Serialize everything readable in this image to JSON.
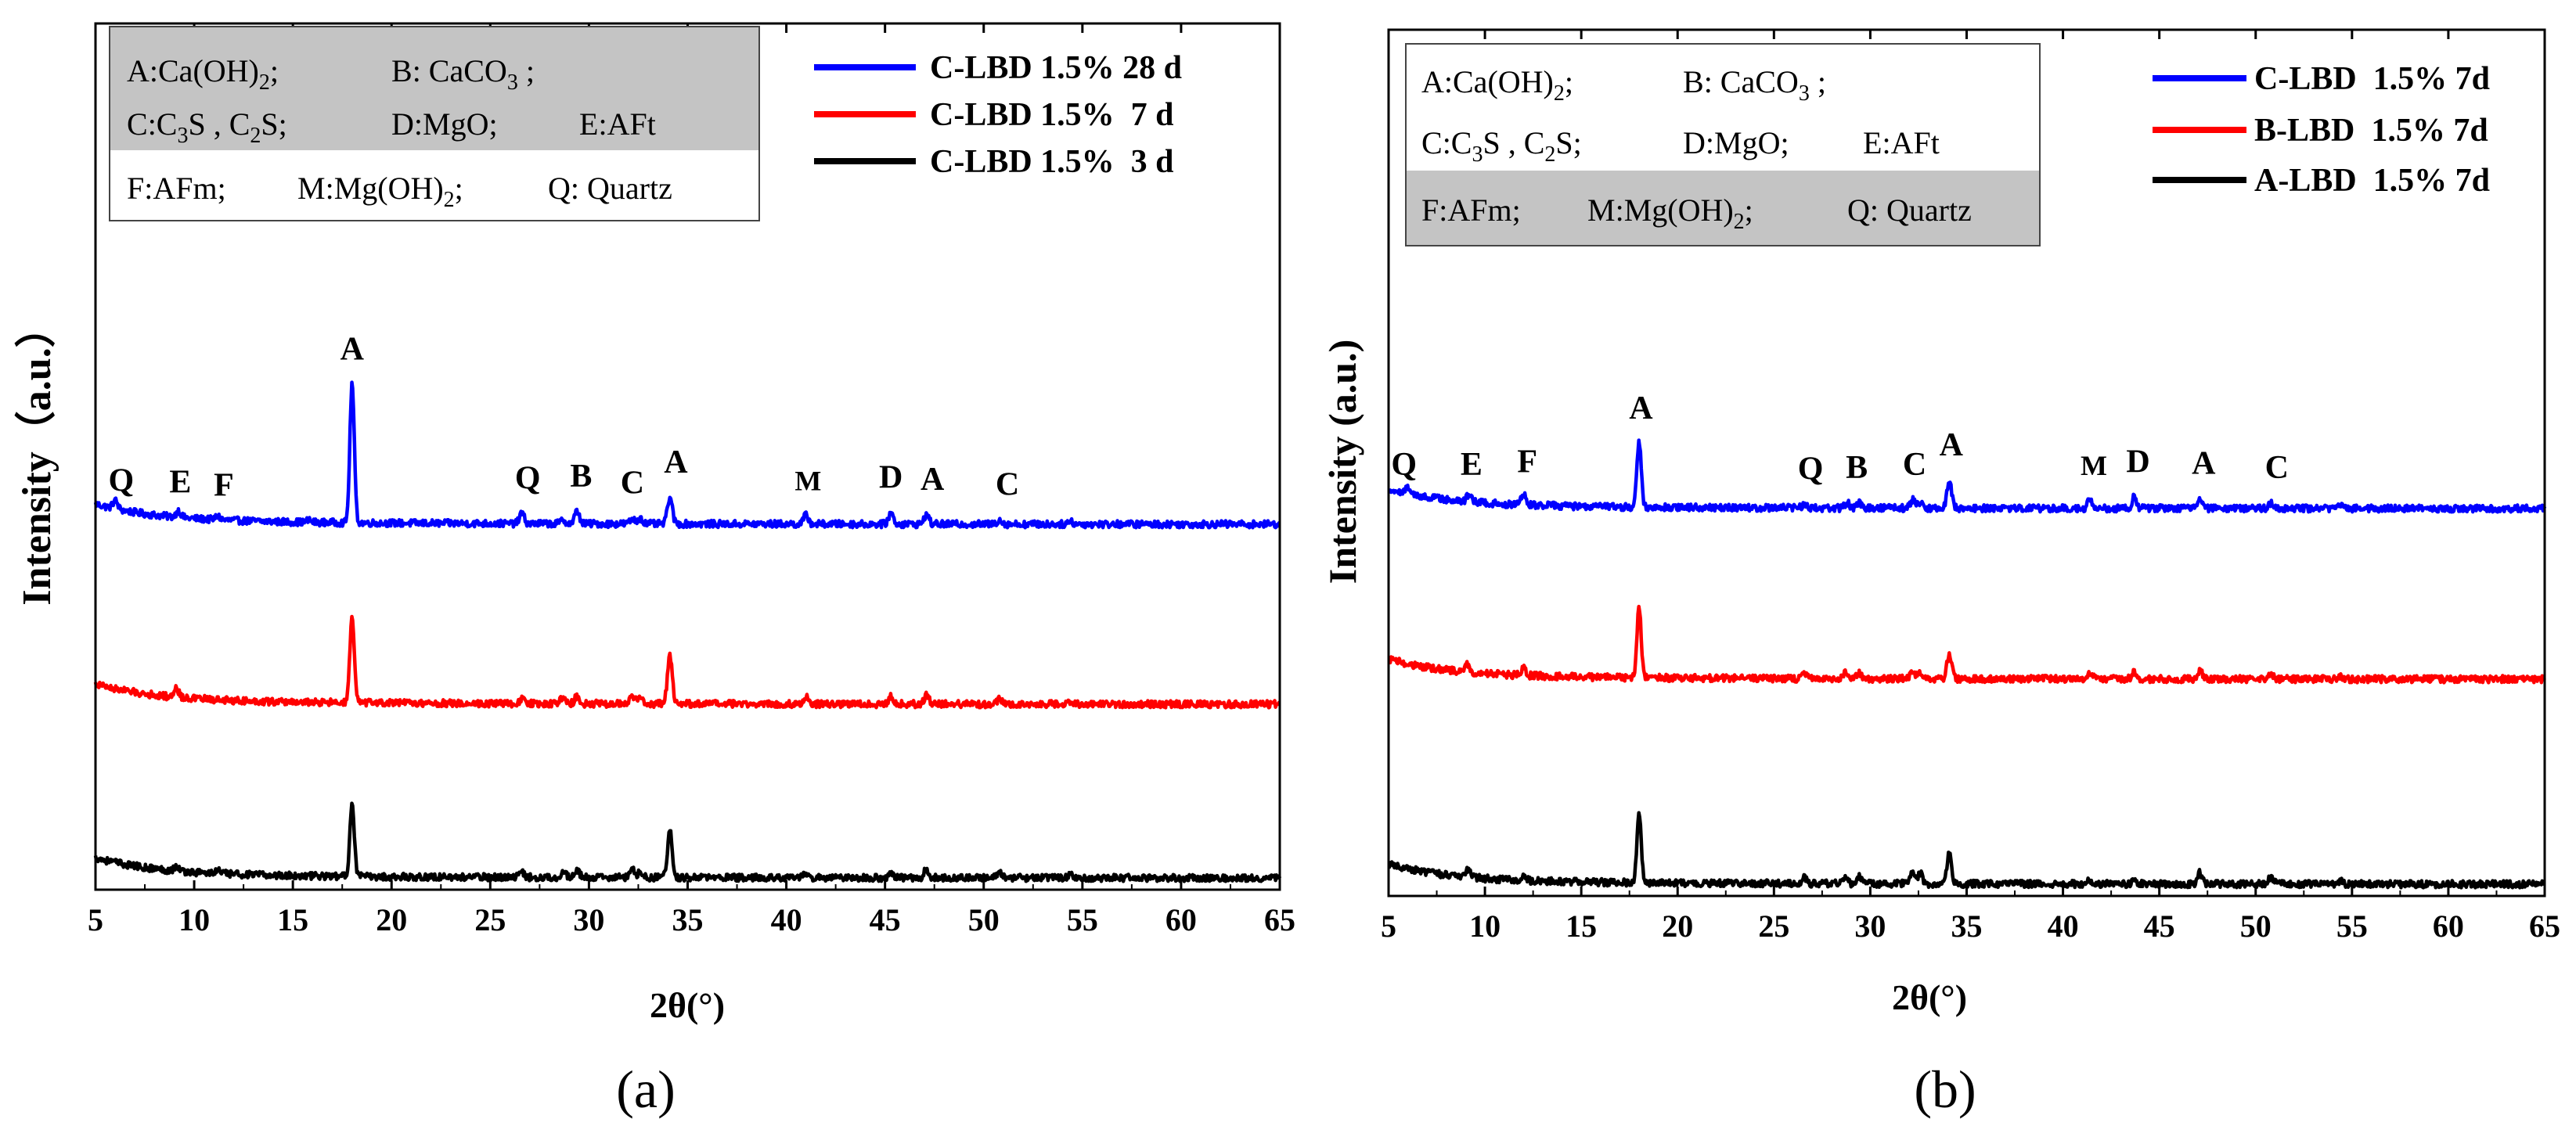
{
  "chart_data": [
    {
      "type": "line",
      "panel_label": "(a)",
      "xlabel": "2θ(°)",
      "ylabel": "Intensity（a.u.）",
      "xlim": [
        5,
        65
      ],
      "xticks": [
        "5",
        "10",
        "15",
        "20",
        "25",
        "30",
        "35",
        "40",
        "45",
        "50",
        "55",
        "60",
        "65"
      ],
      "legend": [
        "C-LBD 1.5% 28 d",
        "C-LBD 1.5%  7 d",
        "C-LBD 1.5%  3 d"
      ],
      "phase_key": [
        {
          "code": "A",
          "text": "Ca(OH)2"
        },
        {
          "code": "B",
          "text": "CaCO3"
        },
        {
          "code": "C",
          "text": "C3S , C2S"
        },
        {
          "code": "D",
          "text": "MgO"
        },
        {
          "code": "E",
          "text": "AFt"
        },
        {
          "code": "F",
          "text": "AFm"
        },
        {
          "code": "M",
          "text": "Mg(OH)2"
        },
        {
          "code": "Q",
          "text": "Quartz"
        }
      ],
      "series": [
        {
          "name": "C-LBD 1.5% 28 d",
          "color": "#0000ff",
          "baseline": 2.0,
          "peaks": [
            [
              6.0,
              0.28
            ],
            [
              9.2,
              0.22
            ],
            [
              11.2,
              0.12
            ],
            [
              15.8,
              0.06
            ],
            [
              18.0,
              4.7
            ],
            [
              26.6,
              0.35
            ],
            [
              28.7,
              0.12
            ],
            [
              29.4,
              0.42
            ],
            [
              32.2,
              0.15
            ],
            [
              32.6,
              0.2
            ],
            [
              34.1,
              0.9
            ],
            [
              41.0,
              0.3
            ],
            [
              45.3,
              0.38
            ],
            [
              47.1,
              0.32
            ],
            [
              50.8,
              0.15
            ],
            [
              54.4,
              0.1
            ]
          ]
        },
        {
          "name": "C-LBD 1.5%  7 d",
          "color": "#ff0000",
          "baseline": 1.0,
          "peaks": [
            [
              9.1,
              0.3
            ],
            [
              18.0,
              2.9
            ],
            [
              26.6,
              0.15
            ],
            [
              28.7,
              0.25
            ],
            [
              29.4,
              0.25
            ],
            [
              32.2,
              0.25
            ],
            [
              32.6,
              0.2
            ],
            [
              34.1,
              1.6
            ],
            [
              41.0,
              0.25
            ],
            [
              45.3,
              0.25
            ],
            [
              47.1,
              0.3
            ],
            [
              50.8,
              0.15
            ],
            [
              54.4,
              0.1
            ]
          ]
        },
        {
          "name": "C-LBD 1.5%  3 d",
          "color": "#000000",
          "baseline": 0.0,
          "peaks": [
            [
              9.1,
              0.15
            ],
            [
              11.2,
              0.12
            ],
            [
              18.0,
              2.5
            ],
            [
              26.6,
              0.2
            ],
            [
              28.7,
              0.22
            ],
            [
              29.4,
              0.22
            ],
            [
              32.2,
              0.25
            ],
            [
              32.6,
              0.2
            ],
            [
              34.1,
              1.6
            ],
            [
              41.0,
              0.12
            ],
            [
              45.3,
              0.15
            ],
            [
              47.1,
              0.3
            ],
            [
              50.8,
              0.18
            ],
            [
              54.4,
              0.1
            ]
          ]
        }
      ],
      "peak_labels": [
        {
          "text": "Q",
          "x": 6.3
        },
        {
          "text": "E",
          "x": 9.3
        },
        {
          "text": "F",
          "x": 11.5
        },
        {
          "text": "A",
          "x": 18.0
        },
        {
          "text": "Q",
          "x": 26.9
        },
        {
          "text": "B",
          "x": 29.6
        },
        {
          "text": "C",
          "x": 32.2
        },
        {
          "text": "A",
          "x": 34.4
        },
        {
          "text": "M",
          "x": 41.1
        },
        {
          "text": "D",
          "x": 45.3
        },
        {
          "text": "A",
          "x": 47.4
        },
        {
          "text": "C",
          "x": 51.2
        }
      ]
    },
    {
      "type": "line",
      "panel_label": "(b)",
      "xlabel": "2θ(°)",
      "ylabel": "Intensity (a.u.)",
      "xlim": [
        5,
        65
      ],
      "xticks": [
        "5",
        "10",
        "15",
        "20",
        "25",
        "30",
        "35",
        "40",
        "45",
        "50",
        "55",
        "60",
        "65"
      ],
      "legend": [
        "C-LBD  1.5% 7d",
        "B-LBD  1.5% 7d",
        "A-LBD  1.5% 7d"
      ],
      "phase_key": [
        {
          "code": "A",
          "text": "Ca(OH)2"
        },
        {
          "code": "B",
          "text": "CaCO3"
        },
        {
          "code": "C",
          "text": "C3S , C2S"
        },
        {
          "code": "D",
          "text": "MgO"
        },
        {
          "code": "E",
          "text": "AFt"
        },
        {
          "code": "F",
          "text": "AFm"
        },
        {
          "code": "M",
          "text": "Mg(OH)2"
        },
        {
          "code": "Q",
          "text": "Quartz"
        }
      ],
      "series": [
        {
          "name": "C-LBD  1.5% 7d",
          "color": "#0000ff",
          "baseline": 2.0,
          "peaks": [
            [
              6.0,
              0.2
            ],
            [
              9.2,
              0.3
            ],
            [
              12.0,
              0.4
            ],
            [
              18.0,
              2.3
            ],
            [
              26.6,
              0.15
            ],
            [
              28.8,
              0.2
            ],
            [
              29.4,
              0.2
            ],
            [
              32.2,
              0.3
            ],
            [
              32.6,
              0.2
            ],
            [
              34.1,
              1.0
            ],
            [
              41.4,
              0.3
            ],
            [
              43.7,
              0.4
            ],
            [
              47.1,
              0.35
            ],
            [
              50.8,
              0.2
            ],
            [
              54.4,
              0.1
            ]
          ]
        },
        {
          "name": "B-LBD  1.5% 7d",
          "color": "#ff0000",
          "baseline": 1.0,
          "peaks": [
            [
              9.1,
              0.3
            ],
            [
              12.0,
              0.25
            ],
            [
              18.0,
              2.5
            ],
            [
              26.6,
              0.2
            ],
            [
              28.7,
              0.2
            ],
            [
              29.4,
              0.2
            ],
            [
              32.2,
              0.3
            ],
            [
              32.6,
              0.2
            ],
            [
              34.1,
              0.9
            ],
            [
              41.4,
              0.25
            ],
            [
              43.7,
              0.3
            ],
            [
              47.1,
              0.3
            ],
            [
              50.8,
              0.15
            ],
            [
              54.4,
              0.1
            ]
          ]
        },
        {
          "name": "A-LBD  1.5% 7d",
          "color": "#000000",
          "baseline": 0.0,
          "peaks": [
            [
              9.1,
              0.3
            ],
            [
              12.0,
              0.15
            ],
            [
              18.0,
              2.5
            ],
            [
              26.6,
              0.2
            ],
            [
              28.7,
              0.2
            ],
            [
              29.4,
              0.25
            ],
            [
              32.2,
              0.45
            ],
            [
              32.6,
              0.35
            ],
            [
              34.1,
              1.1
            ],
            [
              41.4,
              0.15
            ],
            [
              43.7,
              0.15
            ],
            [
              47.1,
              0.4
            ],
            [
              50.8,
              0.25
            ],
            [
              54.4,
              0.12
            ]
          ]
        }
      ],
      "peak_labels": [
        {
          "text": "Q",
          "x": 5.8
        },
        {
          "text": "E",
          "x": 9.3
        },
        {
          "text": "F",
          "x": 12.2
        },
        {
          "text": "A",
          "x": 18.1
        },
        {
          "text": "Q",
          "x": 26.9
        },
        {
          "text": "B",
          "x": 29.3
        },
        {
          "text": "C",
          "x": 32.3
        },
        {
          "text": "A",
          "x": 34.2
        },
        {
          "text": "M",
          "x": 41.6
        },
        {
          "text": "D",
          "x": 43.9
        },
        {
          "text": "A",
          "x": 47.3
        },
        {
          "text": "C",
          "x": 51.1
        }
      ]
    }
  ]
}
